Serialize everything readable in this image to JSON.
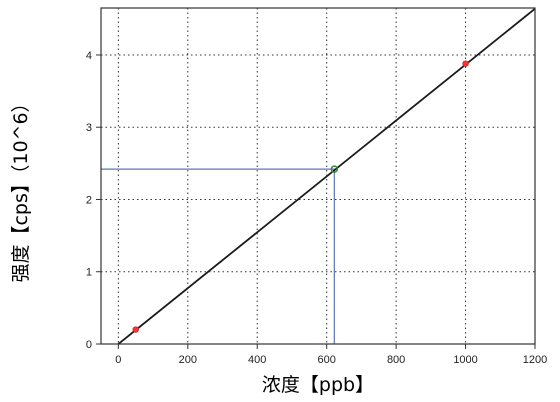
{
  "chart_data": {
    "type": "scatter",
    "xlabel": "浓度【ppb】",
    "ylabel": "强度【cps】（10^6）",
    "xlim": [
      -50,
      1200
    ],
    "ylim": [
      0,
      4.65
    ],
    "xticks": [
      0,
      200,
      400,
      600,
      800,
      1000,
      1200
    ],
    "yticks": [
      0,
      1,
      2,
      3,
      4
    ],
    "grid": true,
    "calibration_line": {
      "x": [
        0,
        1200
      ],
      "y": [
        0,
        4.64
      ]
    },
    "standards": {
      "x": [
        50,
        1000
      ],
      "y": [
        0.2,
        3.88
      ]
    },
    "sample": {
      "x": 622,
      "y": 2.42
    },
    "colors": {
      "line": "#1b1b1b",
      "standard_marker": "#ff3333",
      "sample_marker": "#2f8a2f",
      "guide_line": "#5b74b8",
      "grid": "#333333"
    }
  }
}
